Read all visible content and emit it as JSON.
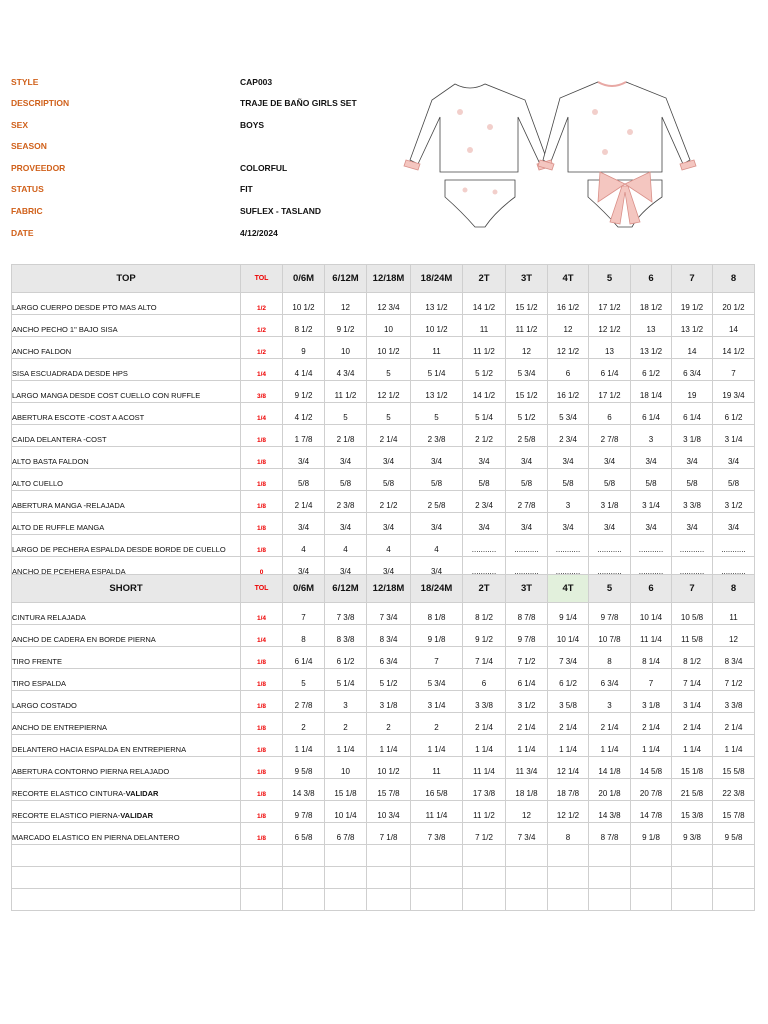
{
  "header": {
    "fields": [
      {
        "label": "STYLE",
        "value": "CAP003"
      },
      {
        "label": "DESCRIPTION",
        "value": "TRAJE DE BAÑO GIRLS SET"
      },
      {
        "label": "SEX",
        "value": "BOYS"
      },
      {
        "label": "SEASON"
      },
      {
        "label": "PROVEEDOR",
        "value": "COLORFUL"
      },
      {
        "label": "STATUS",
        "value": "FIT"
      },
      {
        "label": "FABRIC",
        "value": "SUFLEX - TASLAND"
      },
      {
        "label": "DATE",
        "value": "4/12/2024"
      }
    ]
  },
  "tables": [
    {
      "title": "TOP",
      "tol": "TOL",
      "sizes": [
        "0/6M",
        "6/12M",
        "12/18M",
        "18/24M",
        "2T",
        "3T",
        "4T",
        "5",
        "6",
        "7",
        "8"
      ],
      "rows": [
        {
          "name": "LARGO CUERPO DESDE PTO MAS ALTO",
          "tol": "1/2",
          "values": [
            "10 1/2",
            "12",
            "12 3/4",
            "13 1/2",
            "14 1/2",
            "15 1/2",
            "16 1/2",
            "17 1/2",
            "18 1/2",
            "19 1/2",
            "20 1/2"
          ]
        },
        {
          "name": "ANCHO PECHO 1\" BAJO SISA",
          "tol": "1/2",
          "values": [
            "8 1/2",
            "9 1/2",
            "10",
            "10 1/2",
            "11",
            "11 1/2",
            "12",
            "12 1/2",
            "13",
            "13 1/2",
            "14"
          ]
        },
        {
          "name": "ANCHO FALDON",
          "tol": "1/2",
          "values": [
            "9",
            "10",
            "10 1/2",
            "11",
            "11 1/2",
            "12",
            "12 1/2",
            "13",
            "13 1/2",
            "14",
            "14 1/2"
          ]
        },
        {
          "name": "SISA ESCUADRADA DESDE HPS",
          "tol": "1/4",
          "values": [
            "4 1/4",
            "4 3/4",
            "5",
            "5 1/4",
            "5 1/2",
            "5 3/4",
            "6",
            "6 1/4",
            "6 1/2",
            "6 3/4",
            "7"
          ]
        },
        {
          "name": "LARGO MANGA DESDE COST CUELLO CON RUFFLE",
          "tol": "3/8",
          "values": [
            "9 1/2",
            "11 1/2",
            "12 1/2",
            "13 1/2",
            "14 1/2",
            "15 1/2",
            "16 1/2",
            "17 1/2",
            "18 1/4",
            "19",
            "19 3/4"
          ]
        },
        {
          "name": "ABERTURA ESCOTE -COST A ACOST",
          "tol": "1/4",
          "values": [
            "4 1/2",
            "5",
            "5",
            "5",
            "5 1/4",
            "5 1/2",
            "5 3/4",
            "6",
            "6 1/4",
            "6 1/4",
            "6 1/2"
          ]
        },
        {
          "name": "CAIDA DELANTERA -COST",
          "tol": "1/8",
          "values": [
            "1 7/8",
            "2 1/8",
            "2 1/4",
            "2 3/8",
            "2 1/2",
            "2 5/8",
            "2 3/4",
            "2 7/8",
            "3",
            "3 1/8",
            "3 1/4"
          ]
        },
        {
          "name": "ALTO BASTA FALDON",
          "tol": "1/8",
          "values": [
            "3/4",
            "3/4",
            "3/4",
            "3/4",
            "3/4",
            "3/4",
            "3/4",
            "3/4",
            "3/4",
            "3/4",
            "3/4"
          ]
        },
        {
          "name": "ALTO CUELLO",
          "tol": "1/8",
          "values": [
            "5/8",
            "5/8",
            "5/8",
            "5/8",
            "5/8",
            "5/8",
            "5/8",
            "5/8",
            "5/8",
            "5/8",
            "5/8"
          ]
        },
        {
          "name": "ABERTURA MANGA -RELAJADA",
          "tol": "1/8",
          "values": [
            "2 1/4",
            "2 3/8",
            "2 1/2",
            "2 5/8",
            "2 3/4",
            "2 7/8",
            "3",
            "3 1/8",
            "3 1/4",
            "3 3/8",
            "3 1/2"
          ]
        },
        {
          "name": "ALTO DE RUFFLE MANGA",
          "tol": "1/8",
          "values": [
            "3/4",
            "3/4",
            "3/4",
            "3/4",
            "3/4",
            "3/4",
            "3/4",
            "3/4",
            "3/4",
            "3/4",
            "3/4"
          ]
        },
        {
          "name": "LARGO DE PECHERA ESPALDA DESDE BORDE DE CUELLO",
          "tol": "1/8",
          "values": [
            "4",
            "4",
            "4",
            "4",
            "...........",
            "...........",
            "...........",
            "...........",
            "...........",
            "...........",
            "..........."
          ]
        },
        {
          "name": "ANCHO DE PCEHERA ESPALDA",
          "tol": "0",
          "values": [
            "3/4",
            "3/4",
            "3/4",
            "3/4",
            "...........",
            "...........",
            "...........",
            "...........",
            "...........",
            "...........",
            "..........."
          ]
        }
      ]
    },
    {
      "title": "SHORT",
      "tol": "TOL",
      "sizes": [
        "0/6M",
        "6/12M",
        "12/18M",
        "18/24M",
        "2T",
        "3T",
        "4T",
        "5",
        "6",
        "7",
        "8"
      ],
      "rows": [
        {
          "name": "CINTURA RELAJADA",
          "tol": "1/4",
          "values": [
            "7",
            "7 3/8",
            "7 3/4",
            "8 1/8",
            "8 1/2",
            "8 7/8",
            "9 1/4",
            "9 7/8",
            "10 1/4",
            "10 5/8",
            "11"
          ]
        },
        {
          "name": "ANCHO DE CADERA EN BORDE PIERNA",
          "tol": "1/4",
          "values": [
            "8",
            "8 3/8",
            "8 3/4",
            "9 1/8",
            "9 1/2",
            "9 7/8",
            "10 1/4",
            "10 7/8",
            "11 1/4",
            "11 5/8",
            "12"
          ]
        },
        {
          "name": "TIRO FRENTE",
          "tol": "1/8",
          "values": [
            "6 1/4",
            "6 1/2",
            "6 3/4",
            "7",
            "7 1/4",
            "7 1/2",
            "7 3/4",
            "8",
            "8 1/4",
            "8 1/2",
            "8 3/4"
          ]
        },
        {
          "name": "TIRO ESPALDA",
          "tol": "1/8",
          "values": [
            "5",
            "5 1/4",
            "5 1/2",
            "5 3/4",
            "6",
            "6 1/4",
            "6 1/2",
            "6 3/4",
            "7",
            "7 1/4",
            "7 1/2"
          ]
        },
        {
          "name": "LARGO COSTADO",
          "tol": "1/8",
          "values": [
            "2 7/8",
            "3",
            "3 1/8",
            "3 1/4",
            "3 3/8",
            "3 1/2",
            "3 5/8",
            "3",
            "3 1/8",
            "3 1/4",
            "3 3/8"
          ]
        },
        {
          "name": "ANCHO DE ENTREPIERNA",
          "tol": "1/8",
          "values": [
            "2",
            "2",
            "2",
            "2",
            "2 1/4",
            "2 1/4",
            "2 1/4",
            "2 1/4",
            "2 1/4",
            "2 1/4",
            "2 1/4"
          ]
        },
        {
          "name": "DELANTERO HACIA ESPALDA EN ENTREPIERNA",
          "tol": "1/8",
          "values": [
            "1 1/4",
            "1 1/4",
            "1 1/4",
            "1 1/4",
            "1 1/4",
            "1 1/4",
            "1 1/4",
            "1 1/4",
            "1 1/4",
            "1 1/4",
            "1 1/4"
          ]
        },
        {
          "name": "ABERTURA CONTORNO PIERNA RELAJADO",
          "tol": "1/8",
          "values": [
            "9 5/8",
            "10",
            "10 1/2",
            "11",
            "11 1/4",
            "11 3/4",
            "12 1/4",
            "14 1/8",
            "14 5/8",
            "15 1/8",
            "15 5/8"
          ]
        },
        {
          "name": "RECORTE ELASTICO CINTURA-",
          "name_bold": "VALIDAR",
          "tol": "1/8",
          "values": [
            "14 3/8",
            "15 1/8",
            "15 7/8",
            "16 5/8",
            "17 3/8",
            "18 1/8",
            "18 7/8",
            "20 1/8",
            "20 7/8",
            "21 5/8",
            "22 3/8"
          ]
        },
        {
          "name": "RECORTE ELASTICO PIERNA-",
          "name_bold": "VALIDAR",
          "tol": "1/8",
          "values": [
            "9 7/8",
            "10 1/4",
            "10 3/4",
            "11 1/4",
            "11 1/2",
            "12",
            "12 1/2",
            "14 3/8",
            "14 7/8",
            "15 3/8",
            "15 7/8"
          ]
        },
        {
          "name": "MARCADO ELASTICO EN PIERNA DELANTERO",
          "tol": "1/8",
          "values": [
            "6 5/8",
            "6 7/8",
            "7 1/8",
            "7 3/8",
            "7 1/2",
            "7 3/4",
            "8",
            "8 7/8",
            "9 1/8",
            "9 3/8",
            "9 5/8"
          ]
        }
      ]
    }
  ]
}
